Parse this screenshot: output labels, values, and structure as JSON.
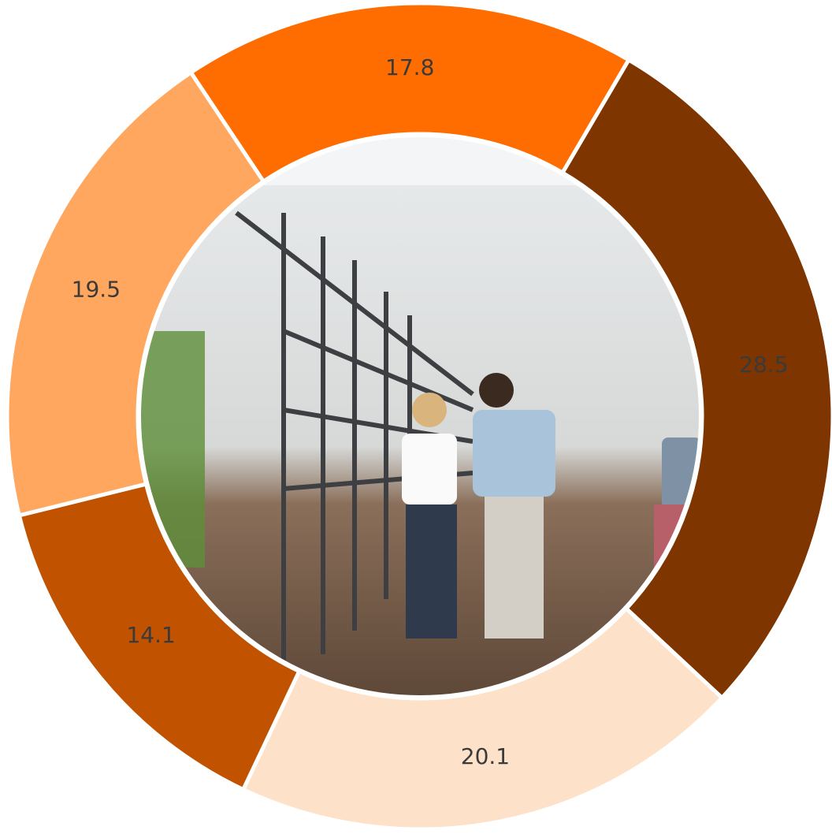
{
  "chart_data": {
    "type": "donut",
    "categories": [
      null,
      null,
      null,
      null,
      null
    ],
    "values": [
      17.8,
      28.5,
      20.1,
      14.1,
      19.5
    ],
    "colors": [
      "#ff6d00",
      "#7f3500",
      "#fde1c8",
      "#c05200",
      "#ffa75e"
    ]
  }
}
